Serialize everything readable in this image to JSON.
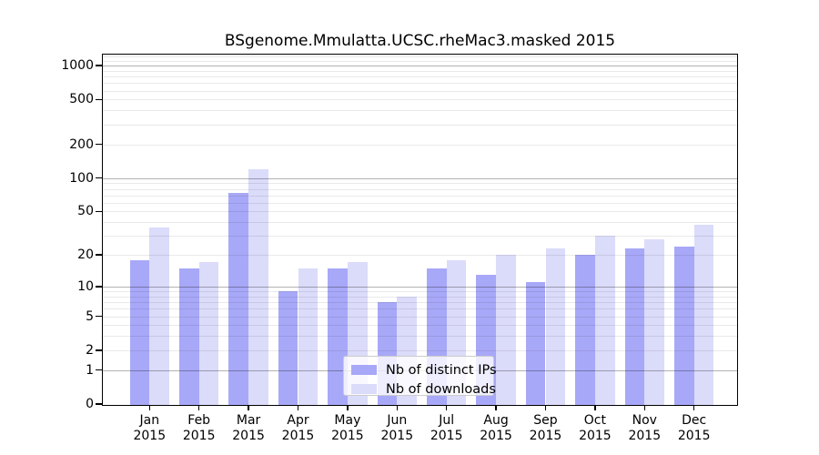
{
  "title": "BSgenome.Mmulatta.UCSC.rheMac3.masked 2015",
  "colors": {
    "ips_bar": "#a8a8f8",
    "downloads_bar": "#dbdbfa",
    "grid_major": "rgba(0,0,0,0.30)",
    "grid_minor": "rgba(0,0,0,0.085)",
    "axis": "#000000",
    "legend_border": "#cccccc"
  },
  "legend": {
    "items": [
      {
        "label": "Nb of distinct IPs",
        "color_key": "ips_bar"
      },
      {
        "label": "Nb of downloads",
        "color_key": "downloads_bar"
      }
    ]
  },
  "y_axis": {
    "tick_labels": [
      "1000",
      "500",
      "200",
      "100",
      "50",
      "20",
      "10",
      "5",
      "2",
      "1",
      "0"
    ],
    "tick_values": [
      1000,
      500,
      200,
      100,
      50,
      20,
      10,
      5,
      2,
      1,
      0
    ],
    "major_grid_values": [
      1,
      10,
      100,
      1000
    ],
    "minor_grid_values": [
      2,
      3,
      4,
      5,
      6,
      7,
      8,
      9,
      20,
      30,
      40,
      50,
      60,
      70,
      80,
      90,
      200,
      300,
      400,
      500,
      600,
      700,
      800,
      900,
      1100,
      1200
    ],
    "scale": "log10(1+v)"
  },
  "x_axis": {
    "months": [
      "Jan",
      "Feb",
      "Mar",
      "Apr",
      "May",
      "Jun",
      "Jul",
      "Aug",
      "Sep",
      "Oct",
      "Nov",
      "Dec"
    ],
    "year": "2015"
  },
  "chart_data": {
    "type": "bar",
    "title": "BSgenome.Mmulatta.UCSC.rheMac3.masked 2015",
    "categories": [
      "Jan 2015",
      "Feb 2015",
      "Mar 2015",
      "Apr 2015",
      "May 2015",
      "Jun 2015",
      "Jul 2015",
      "Aug 2015",
      "Sep 2015",
      "Oct 2015",
      "Nov 2015",
      "Dec 2015"
    ],
    "series": [
      {
        "name": "Nb of distinct IPs",
        "values": [
          18,
          15,
          74,
          9,
          15,
          7,
          15,
          13,
          11,
          20,
          23,
          24
        ]
      },
      {
        "name": "Nb of downloads",
        "values": [
          36,
          17,
          120,
          15,
          17,
          8,
          18,
          20,
          23,
          30,
          28,
          38
        ]
      }
    ],
    "xlabel": "",
    "ylabel": "",
    "y_scale": "log10(1+v)",
    "y_ticks": [
      0,
      1,
      2,
      5,
      10,
      20,
      50,
      100,
      200,
      500,
      1000
    ],
    "ylim": [
      0,
      1240
    ],
    "grid": true,
    "legend_position": "lower-center-inside"
  }
}
